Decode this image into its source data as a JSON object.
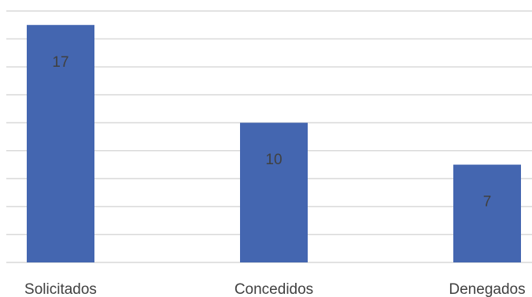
{
  "chart_data": {
    "type": "bar",
    "categories": [
      "Solicitados",
      "Concedidos",
      "Denegados"
    ],
    "values": [
      17,
      10,
      7
    ],
    "data_labels": [
      "17",
      "10",
      "7"
    ],
    "ylim": [
      0,
      18
    ],
    "grid": true,
    "legend": "none",
    "colors": {
      "bar": "#4466b0",
      "grid": "#d9d9d9",
      "text": "#404040"
    }
  }
}
